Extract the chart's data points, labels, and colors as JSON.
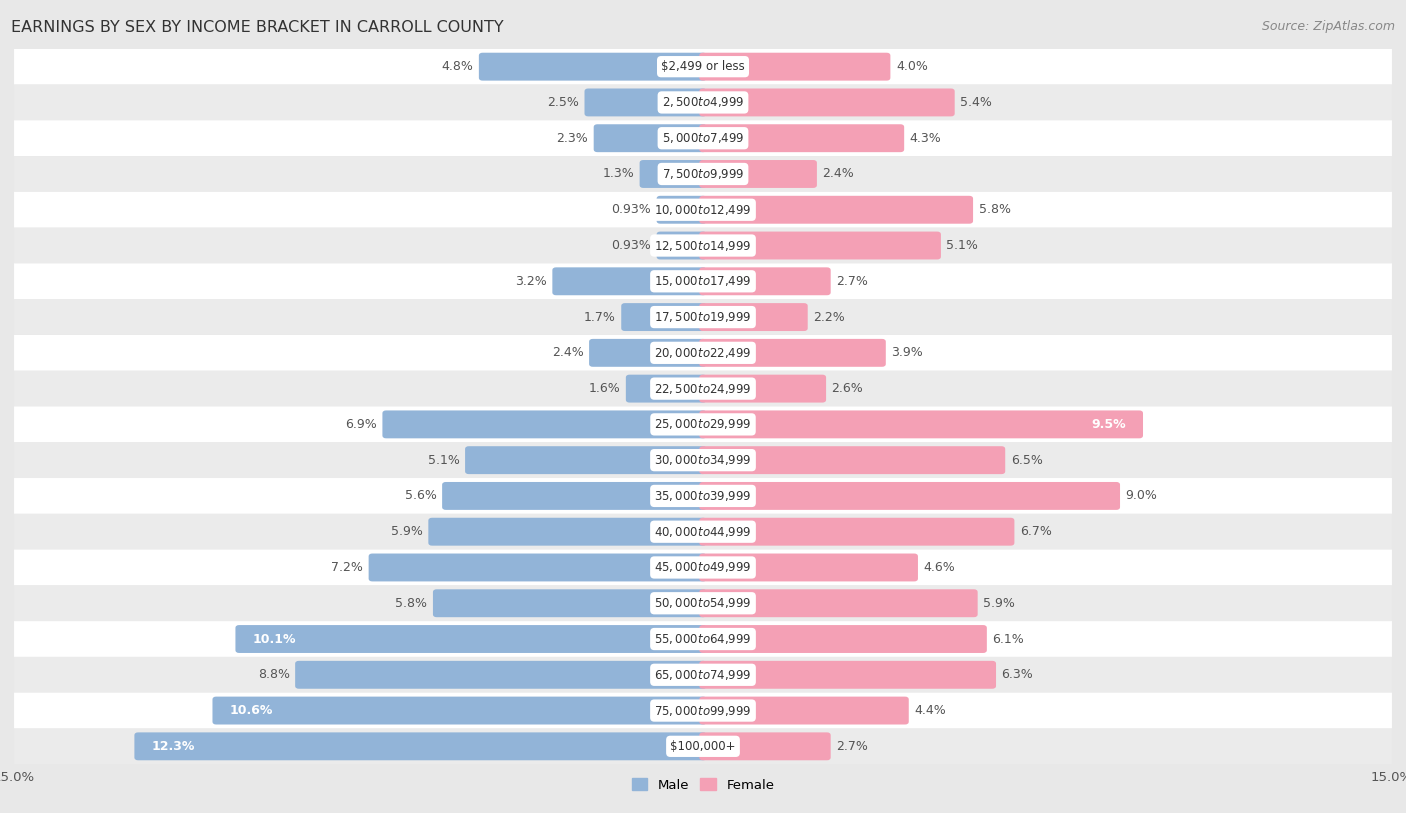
{
  "title": "EARNINGS BY SEX BY INCOME BRACKET IN CARROLL COUNTY",
  "source": "Source: ZipAtlas.com",
  "categories": [
    "$2,499 or less",
    "$2,500 to $4,999",
    "$5,000 to $7,499",
    "$7,500 to $9,999",
    "$10,000 to $12,499",
    "$12,500 to $14,999",
    "$15,000 to $17,499",
    "$17,500 to $19,999",
    "$20,000 to $22,499",
    "$22,500 to $24,999",
    "$25,000 to $29,999",
    "$30,000 to $34,999",
    "$35,000 to $39,999",
    "$40,000 to $44,999",
    "$45,000 to $49,999",
    "$50,000 to $54,999",
    "$55,000 to $64,999",
    "$65,000 to $74,999",
    "$75,000 to $99,999",
    "$100,000+"
  ],
  "male_values": [
    4.8,
    2.5,
    2.3,
    1.3,
    0.93,
    0.93,
    3.2,
    1.7,
    2.4,
    1.6,
    6.9,
    5.1,
    5.6,
    5.9,
    7.2,
    5.8,
    10.1,
    8.8,
    10.6,
    12.3
  ],
  "female_values": [
    4.0,
    5.4,
    4.3,
    2.4,
    5.8,
    5.1,
    2.7,
    2.2,
    3.9,
    2.6,
    9.5,
    6.5,
    9.0,
    6.7,
    4.6,
    5.9,
    6.1,
    6.3,
    4.4,
    2.7
  ],
  "male_color": "#92b4d8",
  "female_color": "#f4a0b5",
  "background_color": "#e8e8e8",
  "row_color_odd": "#ffffff",
  "row_color_even": "#ebebeb",
  "xlim": 15.0,
  "bar_height": 0.62,
  "title_fontsize": 11.5,
  "label_fontsize": 9.0,
  "tick_fontsize": 9.5,
  "source_fontsize": 9.0,
  "cat_fontsize": 8.5
}
